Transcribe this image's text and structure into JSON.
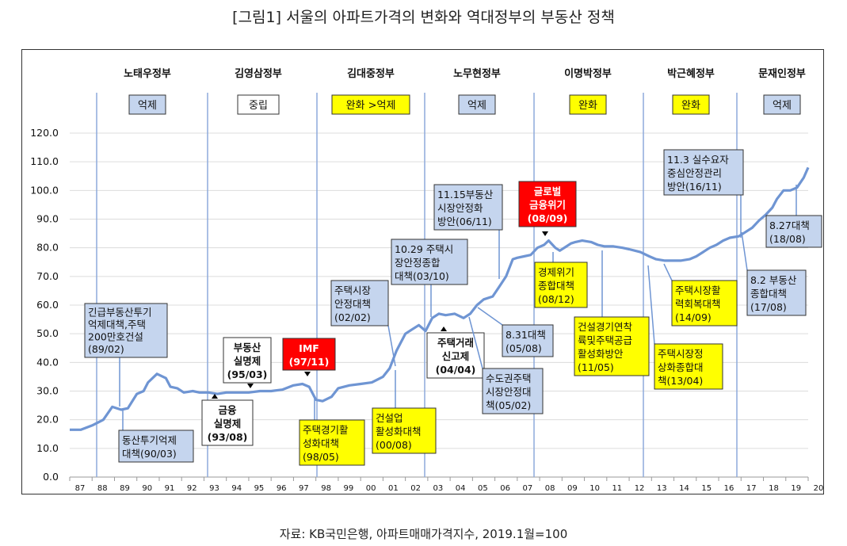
{
  "title": "[그림1] 서울의 아파트가격의 변화와 역대정부의 부동산 정책",
  "source": "자료: KB국민은행, 아파트매매가격지수, 2019.1월=100",
  "colors": {
    "line": "#6f95d3",
    "divider": "#8eaadb",
    "blue_box": "#c5d5ee",
    "yellow_box": "#ffff00",
    "red_box": "#ff0000",
    "axis": "#999999"
  },
  "chart_data": {
    "type": "line",
    "title": "[그림1] 서울의 아파트가격의 변화와 역대정부의 부동산 정책",
    "xlabel": "",
    "ylabel": "",
    "xlim": [
      1987.0,
      2020.0
    ],
    "ylim": [
      0,
      120
    ],
    "yticks": [
      "0.0",
      "10.0",
      "20.0",
      "30.0",
      "40.0",
      "50.0",
      "60.0",
      "70.0",
      "80.0",
      "90.0",
      "100.0",
      "110.0",
      "120.0"
    ],
    "xticks": [
      "87",
      "88",
      "89",
      "90",
      "91",
      "92",
      "93",
      "94",
      "95",
      "96",
      "97",
      "98",
      "99",
      "00",
      "01",
      "02",
      "03",
      "04",
      "05",
      "06",
      "07",
      "08",
      "09",
      "10",
      "11",
      "12",
      "13",
      "14",
      "15",
      "16",
      "17",
      "18",
      "19",
      "20"
    ],
    "grid": "horizontal",
    "series": [
      {
        "name": "",
        "x": [
          1987.0,
          1987.5,
          1988.0,
          1988.5,
          1988.9,
          1989.3,
          1989.6,
          1990.0,
          1990.3,
          1990.5,
          1990.9,
          1991.3,
          1991.5,
          1991.8,
          1992.1,
          1992.5,
          1992.8,
          1993.2,
          1993.6,
          1994.0,
          1994.5,
          1995.0,
          1995.5,
          1996.0,
          1996.5,
          1997.0,
          1997.4,
          1997.7,
          1998.0,
          1998.3,
          1998.7,
          1999.0,
          1999.5,
          2000.0,
          2000.5,
          2001.0,
          2001.3,
          2001.6,
          2002.0,
          2002.3,
          2002.6,
          2002.9,
          2003.2,
          2003.5,
          2003.8,
          2004.2,
          2004.6,
          2004.9,
          2005.2,
          2005.5,
          2005.9,
          2006.2,
          2006.5,
          2006.8,
          2007.0,
          2007.3,
          2007.6,
          2007.9,
          2008.2,
          2008.4,
          2008.7,
          2008.9,
          2009.2,
          2009.4,
          2009.6,
          2009.9,
          2010.3,
          2010.6,
          2010.9,
          2011.3,
          2011.7,
          2012.0,
          2012.5,
          2012.9,
          2013.2,
          2013.6,
          2013.9,
          2014.3,
          2014.7,
          2015.0,
          2015.3,
          2015.6,
          2015.9,
          2016.2,
          2016.5,
          2016.9,
          2017.2,
          2017.5,
          2017.8,
          2018.1,
          2018.4,
          2018.6,
          2018.9,
          2019.2,
          2019.5,
          2019.8,
          2020.0
        ],
        "y": [
          16.5,
          16.5,
          18.0,
          20.0,
          24.5,
          23.5,
          24.0,
          29.0,
          30.0,
          33.0,
          36.0,
          34.5,
          31.5,
          31.0,
          29.5,
          30.0,
          29.5,
          29.5,
          29.0,
          29.5,
          29.5,
          29.5,
          30.0,
          30.0,
          30.5,
          32.0,
          32.5,
          31.5,
          27.0,
          26.5,
          28.0,
          31.0,
          32.0,
          32.5,
          33.0,
          35.0,
          38.0,
          44.0,
          50.0,
          51.5,
          53.0,
          51.0,
          55.5,
          57.0,
          56.5,
          57.0,
          55.5,
          57.0,
          60.0,
          62.0,
          63.0,
          66.5,
          70.0,
          76.0,
          76.5,
          77.0,
          77.5,
          80.0,
          81.0,
          82.5,
          80.0,
          79.0,
          80.5,
          81.5,
          82.0,
          82.5,
          82.0,
          81.0,
          80.5,
          80.5,
          80.0,
          79.5,
          78.5,
          77.0,
          76.0,
          75.5,
          75.5,
          75.5,
          76.0,
          77.0,
          78.5,
          80.0,
          81.0,
          82.5,
          83.5,
          84.0,
          85.5,
          87.0,
          89.5,
          91.5,
          94.0,
          97.0,
          100.0,
          100.0,
          101.0,
          104.5,
          108.0
        ]
      }
    ],
    "governments": [
      {
        "name": "노태우정부",
        "stance": "억제",
        "style": "blue"
      },
      {
        "name": "김영삼정부",
        "stance": "중립",
        "style": "white"
      },
      {
        "name": "김대중정부",
        "stance": "완화 >억제",
        "style": "yellow"
      },
      {
        "name": "노무현정부",
        "stance": "억제",
        "style": "blue"
      },
      {
        "name": "이명박정부",
        "stance": "완화",
        "style": "yellow"
      },
      {
        "name": "박근혜정부",
        "stance": "완화",
        "style": "yellow"
      },
      {
        "name": "문재인정부",
        "stance": "억제",
        "style": "blue"
      }
    ],
    "annotations": [
      {
        "lines": [
          "긴급부동산투기",
          "억제대책,주택",
          "200만호건설",
          "(89/02)"
        ],
        "style": "blue"
      },
      {
        "lines": [
          "동산투기억제",
          "대책(90/03)"
        ],
        "style": "blue"
      },
      {
        "lines": [
          "부동산",
          "실명제",
          "(95/03)"
        ],
        "style": "white"
      },
      {
        "lines": [
          "금융",
          "실명제",
          "(93/08)"
        ],
        "style": "white"
      },
      {
        "lines": [
          "IMF",
          "(97/11)"
        ],
        "style": "red"
      },
      {
        "lines": [
          "주택경기활",
          "성화대책",
          "(98/05)"
        ],
        "style": "yellow"
      },
      {
        "lines": [
          "주택시장",
          "안정대책",
          "(02/02)"
        ],
        "style": "blue"
      },
      {
        "lines": [
          "건설업",
          "활성화대책",
          "(00/08)"
        ],
        "style": "yellow"
      },
      {
        "lines": [
          "10.29 주택시",
          "장안정종합",
          "대책(03/10)"
        ],
        "style": "blue"
      },
      {
        "lines": [
          "주택거래",
          "신고제",
          "(04/04)"
        ],
        "style": "white"
      },
      {
        "lines": [
          "11.15부동산",
          "시장안정화",
          "방안(06/11)"
        ],
        "style": "blue"
      },
      {
        "lines": [
          "8.31대책",
          "(05/08)"
        ],
        "style": "blue"
      },
      {
        "lines": [
          "수도권주택",
          "시장안정대",
          "책(05/02)"
        ],
        "style": "blue"
      },
      {
        "lines": [
          "글로벌",
          "금융위기",
          "(08/09)"
        ],
        "style": "red"
      },
      {
        "lines": [
          "경제위기",
          "종합대책",
          "(08/12)"
        ],
        "style": "yellow"
      },
      {
        "lines": [
          "건설경기연착",
          "륙및주택공급",
          "활성화방안",
          "(11/05)"
        ],
        "style": "yellow"
      },
      {
        "lines": [
          "11.3 실수요자",
          "중심안정관리",
          "방안(16/11)"
        ],
        "style": "blue"
      },
      {
        "lines": [
          "주택시장활",
          "력회복대책",
          "(14/09)"
        ],
        "style": "yellow"
      },
      {
        "lines": [
          "주택시장정",
          "상화종합대",
          "책(13/04)"
        ],
        "style": "yellow"
      },
      {
        "lines": [
          "8.27대책",
          "(18/08)"
        ],
        "style": "blue"
      },
      {
        "lines": [
          "8.2 부동산",
          "종합대책",
          "(17/08)"
        ],
        "style": "blue"
      }
    ]
  }
}
